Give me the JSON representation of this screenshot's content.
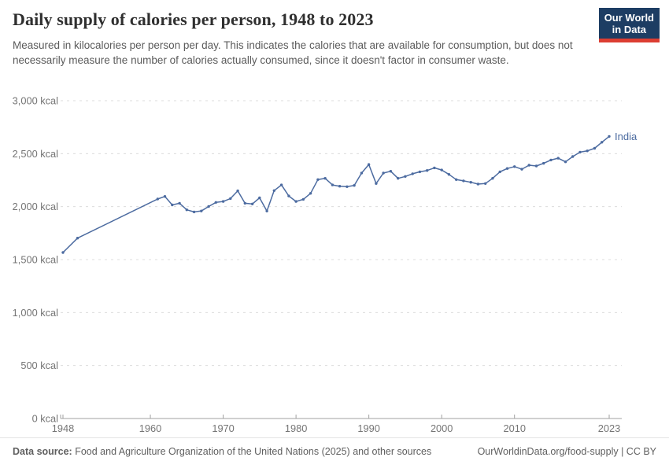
{
  "header": {
    "title": "Daily supply of calories per person, 1948 to 2023",
    "subtitle": "Measured in kilocalories per person per day. This indicates the calories that are available for consumption, but does not necessarily measure the number of calories actually consumed, since it doesn't factor in consumer waste.",
    "logo": {
      "line1": "Our World",
      "line2": "in Data",
      "bg_color": "#1d3d63",
      "accent_color": "#dc3e32"
    }
  },
  "chart_data": {
    "type": "line",
    "title": "Daily supply of calories per person, 1948 to 2023",
    "xlabel": "",
    "ylabel": "",
    "xlim": [
      1948,
      2023
    ],
    "ylim": [
      0,
      3000
    ],
    "grid": "horizontal-dashed",
    "legend_position": "end-of-line-label",
    "end_label": "India",
    "line_color": "#4c6ba0",
    "grid_color": "#dcdcdc",
    "axis_color": "#a0a0a0",
    "tick_label_color": "#757575",
    "yticks": [
      {
        "v": 0,
        "label": "0 kcal"
      },
      {
        "v": 500,
        "label": "500 kcal"
      },
      {
        "v": 1000,
        "label": "1,000 kcal"
      },
      {
        "v": 1500,
        "label": "1,500 kcal"
      },
      {
        "v": 2000,
        "label": "2,000 kcal"
      },
      {
        "v": 2500,
        "label": "2,500 kcal"
      },
      {
        "v": 3000,
        "label": "3,000 kcal"
      }
    ],
    "xticks": [
      1948,
      1960,
      1970,
      1980,
      1990,
      2000,
      2010,
      2023
    ],
    "series": [
      {
        "name": "India",
        "color": "#4c6ba0",
        "points": [
          [
            1948,
            1567
          ],
          [
            1950,
            1703
          ],
          [
            1961,
            2072
          ],
          [
            1962,
            2096
          ],
          [
            1963,
            2016
          ],
          [
            1964,
            2032
          ],
          [
            1965,
            1970
          ],
          [
            1966,
            1950
          ],
          [
            1967,
            1959
          ],
          [
            1968,
            2001
          ],
          [
            1969,
            2040
          ],
          [
            1970,
            2049
          ],
          [
            1971,
            2076
          ],
          [
            1972,
            2149
          ],
          [
            1973,
            2032
          ],
          [
            1974,
            2025
          ],
          [
            1975,
            2083
          ],
          [
            1976,
            1958
          ],
          [
            1977,
            2151
          ],
          [
            1978,
            2205
          ],
          [
            1979,
            2101
          ],
          [
            1980,
            2049
          ],
          [
            1981,
            2069
          ],
          [
            1982,
            2125
          ],
          [
            1983,
            2255
          ],
          [
            1984,
            2267
          ],
          [
            1985,
            2205
          ],
          [
            1986,
            2193
          ],
          [
            1987,
            2188
          ],
          [
            1988,
            2200
          ],
          [
            1989,
            2317
          ],
          [
            1990,
            2398
          ],
          [
            1991,
            2218
          ],
          [
            1992,
            2317
          ],
          [
            1993,
            2334
          ],
          [
            1994,
            2267
          ],
          [
            1995,
            2285
          ],
          [
            1996,
            2310
          ],
          [
            1997,
            2329
          ],
          [
            1998,
            2341
          ],
          [
            1999,
            2366
          ],
          [
            2000,
            2346
          ],
          [
            2001,
            2304
          ],
          [
            2002,
            2255
          ],
          [
            2003,
            2243
          ],
          [
            2004,
            2230
          ],
          [
            2005,
            2213
          ],
          [
            2006,
            2218
          ],
          [
            2007,
            2267
          ],
          [
            2008,
            2329
          ],
          [
            2009,
            2360
          ],
          [
            2010,
            2378
          ],
          [
            2011,
            2353
          ],
          [
            2012,
            2391
          ],
          [
            2013,
            2384
          ],
          [
            2014,
            2409
          ],
          [
            2015,
            2440
          ],
          [
            2016,
            2457
          ],
          [
            2017,
            2423
          ],
          [
            2018,
            2473
          ],
          [
            2019,
            2514
          ],
          [
            2020,
            2526
          ],
          [
            2021,
            2551
          ],
          [
            2022,
            2608
          ],
          [
            2023,
            2663
          ]
        ]
      }
    ]
  },
  "footer": {
    "datasource_label": "Data source:",
    "datasource_text": " Food and Agriculture Organization of the United Nations (2025) and other sources",
    "right_text": "OurWorldinData.org/food-supply | CC BY"
  }
}
